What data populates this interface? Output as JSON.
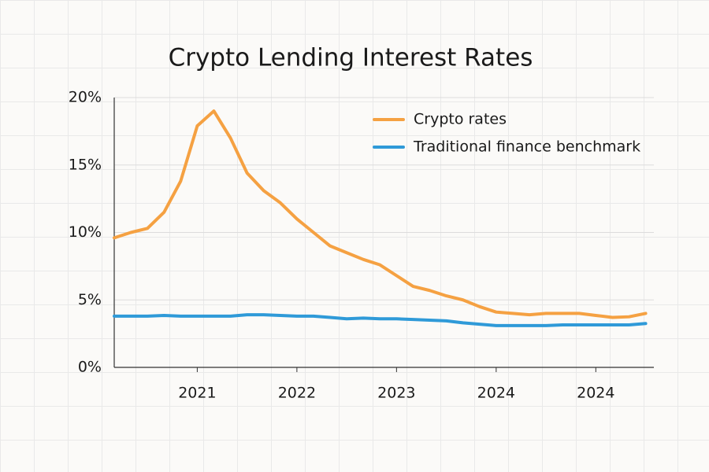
{
  "chart_data": {
    "type": "line",
    "title": "Crypto Lending Interest Rates",
    "categories": [
      null,
      null,
      null,
      null,
      null,
      "2021",
      null,
      null,
      null,
      null,
      null,
      "2022",
      null,
      null,
      null,
      null,
      null,
      "2023",
      null,
      null,
      null,
      null,
      null,
      "2024",
      null,
      null,
      null,
      null,
      null,
      "2024",
      null,
      null,
      null
    ],
    "series": [
      {
        "name": "Crypto rates",
        "color": "#f5a142",
        "values": [
          9.6,
          10.0,
          10.3,
          11.5,
          13.8,
          17.9,
          19.0,
          17.0,
          14.4,
          13.1,
          12.2,
          11.0,
          10.0,
          9.0,
          8.5,
          8.0,
          7.6,
          6.8,
          6.0,
          5.7,
          5.3,
          5.0,
          4.5,
          4.1,
          4.0,
          3.9,
          4.0,
          4.0,
          4.0,
          3.85,
          3.7,
          3.75,
          4.0
        ]
      },
      {
        "name": "Traditional finance benchmark",
        "color": "#2f9ad8",
        "values": [
          3.8,
          3.8,
          3.8,
          3.85,
          3.8,
          3.8,
          3.8,
          3.8,
          3.9,
          3.9,
          3.85,
          3.8,
          3.8,
          3.7,
          3.6,
          3.65,
          3.6,
          3.6,
          3.55,
          3.5,
          3.45,
          3.3,
          3.2,
          3.1,
          3.1,
          3.1,
          3.1,
          3.15,
          3.15,
          3.15,
          3.15,
          3.15,
          3.25
        ]
      }
    ],
    "ylim": [
      0,
      20
    ],
    "yticks": [
      {
        "value": 0,
        "label": "0%"
      },
      {
        "value": 5,
        "label": "5%"
      },
      {
        "value": 10,
        "label": "10%"
      },
      {
        "value": 15,
        "label": "15%"
      },
      {
        "value": 20,
        "label": "20%"
      }
    ],
    "grid": true,
    "legend": "top-right"
  }
}
